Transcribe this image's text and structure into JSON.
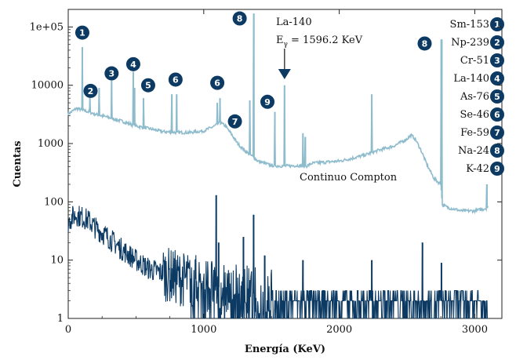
{
  "chart_data": {
    "type": "line",
    "xlabel": "Energía (KeV)",
    "ylabel": "Cuentas",
    "xlim": [
      0,
      3200
    ],
    "ylim": [
      1,
      200000
    ],
    "y_scale": "log",
    "x_ticks": [
      0,
      1000,
      2000,
      3000
    ],
    "x_tick_labels": [
      "0",
      "1000",
      "2000",
      "3000"
    ],
    "y_ticks": [
      1,
      10,
      100,
      1000,
      10000,
      100000
    ],
    "y_tick_labels": [
      "1",
      "10",
      "100",
      "1000",
      "10000",
      "1e+05"
    ],
    "colors": {
      "upper": "#8fbccd",
      "lower": "#0c3a63",
      "badge": "#0c3a63"
    },
    "series": [
      {
        "continuum": [
          [
            0,
            3200
          ],
          [
            60,
            4000
          ],
          [
            100,
            3800
          ],
          [
            200,
            3200
          ],
          [
            300,
            2800
          ],
          [
            400,
            2400
          ],
          [
            500,
            2000
          ],
          [
            600,
            1800
          ],
          [
            700,
            1600
          ],
          [
            800,
            1550
          ],
          [
            900,
            1550
          ],
          [
            1000,
            1650
          ],
          [
            1080,
            2000
          ],
          [
            1120,
            2300
          ],
          [
            1160,
            2000
          ],
          [
            1200,
            1500
          ],
          [
            1250,
            1000
          ],
          [
            1300,
            760
          ],
          [
            1360,
            600
          ],
          [
            1400,
            500
          ],
          [
            1500,
            420
          ],
          [
            1600,
            410
          ],
          [
            1700,
            420
          ],
          [
            1750,
            400
          ],
          [
            1800,
            460
          ],
          [
            1900,
            480
          ],
          [
            2000,
            500
          ],
          [
            2100,
            560
          ],
          [
            2200,
            650
          ],
          [
            2300,
            780
          ],
          [
            2400,
            900
          ],
          [
            2500,
            1200
          ],
          [
            2530,
            1400
          ],
          [
            2560,
            1200
          ],
          [
            2600,
            800
          ],
          [
            2650,
            420
          ],
          [
            2700,
            250
          ],
          [
            2750,
            200
          ],
          [
            2760,
            90
          ],
          [
            2800,
            80
          ],
          [
            2900,
            70
          ],
          [
            3000,
            70
          ],
          [
            3060,
            75
          ],
          [
            3100,
            80
          ]
        ],
        "peaks": [
          [
            104,
            45000
          ],
          [
            160,
            6000
          ],
          [
            228,
            9000
          ],
          [
            320,
            12000
          ],
          [
            480,
            17000
          ],
          [
            490,
            9000
          ],
          [
            555,
            6000
          ],
          [
            765,
            7000
          ],
          [
            800,
            7000
          ],
          [
            1100,
            5000
          ],
          [
            1120,
            6000
          ],
          [
            1290,
            800
          ],
          [
            1340,
            5500
          ],
          [
            1370,
            170000
          ],
          [
            1525,
            3500
          ],
          [
            1596,
            10000
          ],
          [
            1732,
            1500
          ],
          [
            1750,
            1300
          ],
          [
            2240,
            7000
          ],
          [
            2753,
            60000
          ],
          [
            2757,
            60000
          ],
          [
            3090,
            200
          ]
        ]
      },
      {
        "continuum": [
          [
            0,
            45
          ],
          [
            30,
            55
          ],
          [
            60,
            60
          ],
          [
            100,
            55
          ],
          [
            150,
            48
          ],
          [
            200,
            36
          ],
          [
            300,
            24
          ],
          [
            400,
            15
          ],
          [
            500,
            10
          ],
          [
            600,
            7
          ],
          [
            700,
            6
          ],
          [
            800,
            5
          ],
          [
            900,
            4.5
          ],
          [
            1000,
            4
          ],
          [
            1100,
            3.5
          ],
          [
            1200,
            3
          ],
          [
            1300,
            3
          ],
          [
            1400,
            2.5
          ],
          [
            1500,
            2.5
          ],
          [
            1600,
            2
          ],
          [
            1800,
            2
          ],
          [
            2000,
            2
          ],
          [
            2200,
            2
          ],
          [
            2400,
            2
          ],
          [
            2600,
            2
          ],
          [
            2800,
            2
          ],
          [
            3000,
            2
          ],
          [
            3100,
            2
          ]
        ],
        "peaks": [
          [
            1092,
            130
          ],
          [
            1110,
            20
          ],
          [
            1293,
            25
          ],
          [
            1368,
            60
          ],
          [
            1450,
            12
          ],
          [
            1732,
            10
          ],
          [
            2240,
            10
          ],
          [
            2614,
            20
          ],
          [
            2754,
            9
          ]
        ]
      }
    ],
    "annotations": {
      "compton": "Continuo Compton",
      "la_label": "La-140",
      "la_energy_prefix": "E",
      "la_energy_sub": "γ",
      "la_energy_value": " = 1596.2 KeV",
      "la_arrow_x": 1596.2
    },
    "badges": [
      {
        "num": "1",
        "x": 104,
        "y": 80000
      },
      {
        "num": "2",
        "x": 165,
        "y": 8000
      },
      {
        "num": "3",
        "x": 320,
        "y": 16000
      },
      {
        "num": "4",
        "x": 480,
        "y": 23000
      },
      {
        "num": "5",
        "x": 590,
        "y": 10000
      },
      {
        "num": "6",
        "x": 792,
        "y": 12500
      },
      {
        "num": "6",
        "x": 1100,
        "y": 11000
      },
      {
        "num": "7",
        "x": 1230,
        "y": 2400
      },
      {
        "num": "8",
        "x": 1265,
        "y": 140000
      },
      {
        "num": "9",
        "x": 1470,
        "y": 5200
      },
      {
        "num": "8",
        "x": 2630,
        "y": 52000
      }
    ],
    "legend": [
      {
        "label": "Sm-153",
        "num": "1"
      },
      {
        "label": "Np-239",
        "num": "2"
      },
      {
        "label": "Cr-51",
        "num": "3"
      },
      {
        "label": "La-140",
        "num": "4"
      },
      {
        "label": "As-76",
        "num": "5"
      },
      {
        "label": "Se-46",
        "num": "6"
      },
      {
        "label": "Fe-59",
        "num": "7"
      },
      {
        "label": "Na-24",
        "num": "8"
      },
      {
        "label": "K-42",
        "num": "9"
      }
    ]
  }
}
